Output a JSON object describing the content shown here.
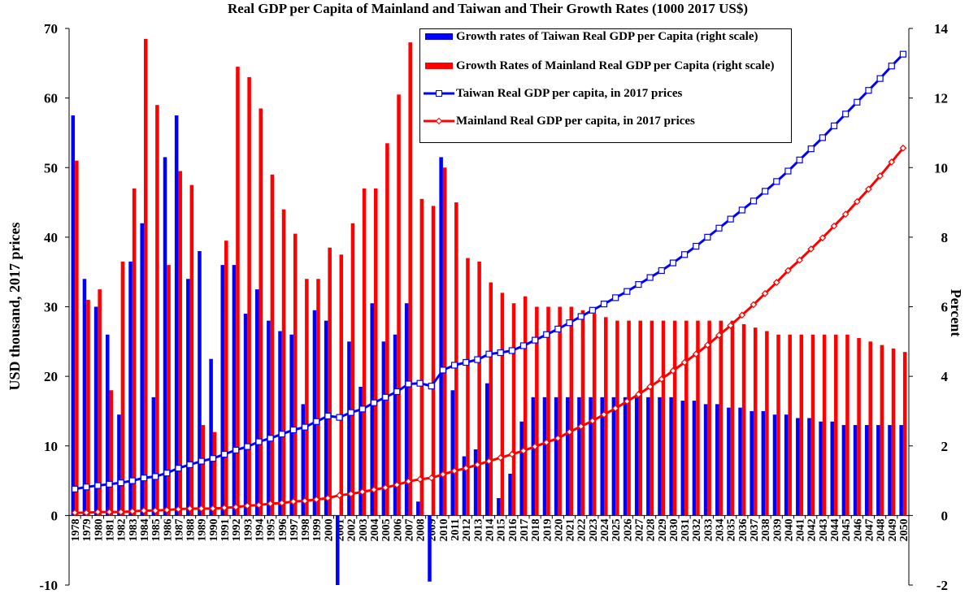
{
  "chart_data": {
    "type": "bar",
    "title": "Real GDP per Capita of Mainland and Taiwan and Their Growth Rates (1000 2017 US$)",
    "y_label": "USD thousand, 2017 prices",
    "y2_label": "Percent",
    "categories": [
      "1978",
      "1979",
      "1980",
      "1981",
      "1982",
      "1983",
      "1984",
      "1985",
      "1986",
      "1987",
      "1988",
      "1989",
      "1990",
      "1991",
      "1992",
      "1993",
      "1994",
      "1995",
      "1996",
      "1997",
      "1998",
      "1999",
      "2000",
      "2001",
      "2002",
      "2003",
      "2004",
      "2005",
      "2006",
      "2007",
      "2008",
      "2009",
      "2010",
      "2011",
      "2012",
      "2013",
      "2014",
      "2015",
      "2016",
      "2017",
      "2018",
      "2019",
      "2020",
      "2021",
      "2022",
      "2023",
      "2024",
      "2025",
      "2026",
      "2027",
      "2028",
      "2029",
      "2030",
      "2031",
      "2032",
      "2033",
      "2034",
      "2035",
      "2036",
      "2037",
      "2038",
      "2039",
      "2040",
      "2041",
      "2042",
      "2043",
      "2044",
      "2045",
      "2046",
      "2047",
      "2048",
      "2049",
      "2050"
    ],
    "ylim": [
      -10,
      70
    ],
    "yticks": [
      -10,
      0,
      10,
      20,
      30,
      40,
      50,
      60,
      70
    ],
    "y2lim": [
      -2,
      14
    ],
    "y2ticks": [
      -2,
      0,
      2,
      4,
      6,
      8,
      10,
      12,
      14
    ],
    "series": [
      {
        "name": "Growth rates of Taiwan Real GDP per Capita (right scale)",
        "type": "bar",
        "axis": "y2",
        "color": "#0000ff",
        "values": [
          11.5,
          6.8,
          6.0,
          5.2,
          2.9,
          7.3,
          8.4,
          3.4,
          10.3,
          11.5,
          6.8,
          7.6,
          4.5,
          7.2,
          7.2,
          5.8,
          6.5,
          5.6,
          5.3,
          5.2,
          3.2,
          5.9,
          5.6,
          -2.0,
          5.0,
          3.7,
          6.1,
          5.0,
          5.2,
          6.1,
          0.4,
          -1.9,
          10.3,
          3.6,
          1.7,
          1.9,
          3.8,
          0.5,
          1.2,
          2.7,
          3.4,
          3.4,
          3.4,
          3.4,
          3.4,
          3.4,
          3.4,
          3.4,
          3.4,
          3.4,
          3.4,
          3.4,
          3.4,
          3.3,
          3.3,
          3.2,
          3.2,
          3.1,
          3.1,
          3.0,
          3.0,
          2.9,
          2.9,
          2.8,
          2.8,
          2.7,
          2.7,
          2.6,
          2.6,
          2.6,
          2.6,
          2.6,
          2.6
        ]
      },
      {
        "name": "Growth Rates of Mainland Real GDP per Capita (right scale)",
        "type": "bar",
        "axis": "y2",
        "color": "#ff0000",
        "values": [
          10.2,
          6.2,
          6.5,
          3.6,
          7.3,
          9.4,
          13.7,
          11.8,
          7.2,
          9.9,
          9.5,
          2.6,
          2.4,
          7.9,
          12.9,
          12.6,
          11.7,
          9.8,
          8.8,
          8.1,
          6.8,
          6.8,
          7.7,
          7.5,
          8.4,
          9.4,
          9.4,
          10.7,
          12.1,
          13.6,
          9.1,
          8.9,
          10.0,
          9.0,
          7.4,
          7.3,
          6.7,
          6.4,
          6.1,
          6.3,
          6.0,
          6.0,
          6.0,
          6.0,
          5.9,
          5.8,
          5.7,
          5.6,
          5.6,
          5.6,
          5.6,
          5.6,
          5.6,
          5.6,
          5.6,
          5.6,
          5.6,
          5.6,
          5.5,
          5.4,
          5.3,
          5.2,
          5.2,
          5.2,
          5.2,
          5.2,
          5.2,
          5.2,
          5.1,
          5.0,
          4.9,
          4.8,
          4.7
        ]
      },
      {
        "name": "Taiwan Real GDP per capita, in 2017 prices",
        "type": "line",
        "marker": "square",
        "color": "#0000ff",
        "values": [
          3.8,
          4.1,
          4.3,
          4.5,
          4.7,
          5.0,
          5.4,
          5.6,
          6.1,
          6.8,
          7.3,
          7.8,
          8.2,
          8.8,
          9.4,
          9.9,
          10.6,
          11.1,
          11.7,
          12.3,
          12.7,
          13.5,
          14.3,
          14.1,
          14.8,
          15.3,
          16.2,
          17.0,
          17.8,
          18.9,
          19.0,
          18.6,
          20.9,
          21.6,
          22.0,
          22.4,
          23.2,
          23.4,
          23.7,
          24.4,
          25.2,
          26.0,
          26.8,
          27.7,
          28.6,
          29.5,
          30.4,
          31.3,
          32.2,
          33.2,
          34.2,
          35.2,
          36.3,
          37.5,
          38.7,
          40.0,
          41.3,
          42.6,
          43.9,
          45.2,
          46.6,
          48.0,
          49.5,
          51.1,
          52.7,
          54.3,
          56.0,
          57.7,
          59.4,
          61.1,
          62.8,
          64.6,
          66.3
        ]
      },
      {
        "name": "Mainland Real GDP per capita, in 2017 prices",
        "type": "line",
        "marker": "diamond",
        "color": "#ff0000",
        "values": [
          0.4,
          0.4,
          0.5,
          0.5,
          0.5,
          0.6,
          0.7,
          0.7,
          0.8,
          0.9,
          1.0,
          1.0,
          1.0,
          1.1,
          1.2,
          1.4,
          1.5,
          1.7,
          1.8,
          2.0,
          2.1,
          2.3,
          2.5,
          2.9,
          3.1,
          3.4,
          3.7,
          4.0,
          4.4,
          4.9,
          5.2,
          5.4,
          5.9,
          6.4,
          6.8,
          7.3,
          7.8,
          8.3,
          8.8,
          9.3,
          9.9,
          10.5,
          11.1,
          12.0,
          12.8,
          13.6,
          14.5,
          15.4,
          16.4,
          17.4,
          18.5,
          19.6,
          20.8,
          22.0,
          23.2,
          24.5,
          25.9,
          27.3,
          28.8,
          30.3,
          31.9,
          33.5,
          35.2,
          36.7,
          38.3,
          39.9,
          41.6,
          43.3,
          45.1,
          46.9,
          48.8,
          50.8,
          52.8
        ]
      }
    ]
  }
}
